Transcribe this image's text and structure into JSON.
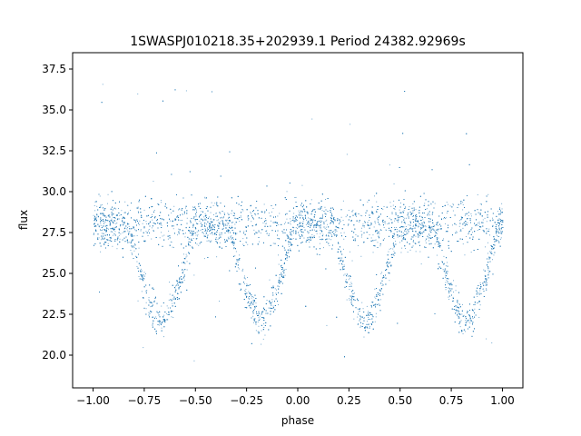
{
  "chart_data": {
    "type": "scatter",
    "title": "1SWASPJ010218.35+202939.1 Period 24382.92969s",
    "xlabel": "phase",
    "ylabel": "flux",
    "xlim": [
      -1.1,
      1.1
    ],
    "ylim": [
      18.0,
      38.5
    ],
    "xticks": [
      -1.0,
      -0.75,
      -0.5,
      -0.25,
      0.0,
      0.25,
      0.5,
      0.75,
      1.0
    ],
    "xtick_labels": [
      "−1.00",
      "−0.75",
      "−0.50",
      "−0.25",
      "0.00",
      "0.25",
      "0.50",
      "0.75",
      "1.00"
    ],
    "yticks": [
      20.0,
      22.5,
      25.0,
      27.5,
      30.0,
      32.5,
      35.0,
      37.5
    ],
    "ytick_labels": [
      "20.0",
      "22.5",
      "25.0",
      "27.5",
      "30.0",
      "32.5",
      "35.0",
      "37.5"
    ],
    "grid": false,
    "legend": "none",
    "marker_color": "#1f77b4",
    "series": [
      {
        "baseline_flux": 28.0,
        "baseline_spread": 0.6,
        "phase_range": [
          -1.0,
          1.0
        ],
        "eclipses": [
          {
            "center_phase": -0.67,
            "min_flux": 21.8,
            "half_width": 0.16
          },
          {
            "center_phase": -0.18,
            "min_flux": 21.8,
            "half_width": 0.16
          },
          {
            "center_phase": 0.33,
            "min_flux": 21.8,
            "half_width": 0.16
          },
          {
            "center_phase": 0.82,
            "min_flux": 21.8,
            "half_width": 0.16
          }
        ],
        "outlier_range": [
          18.5,
          37.5
        ]
      }
    ]
  }
}
